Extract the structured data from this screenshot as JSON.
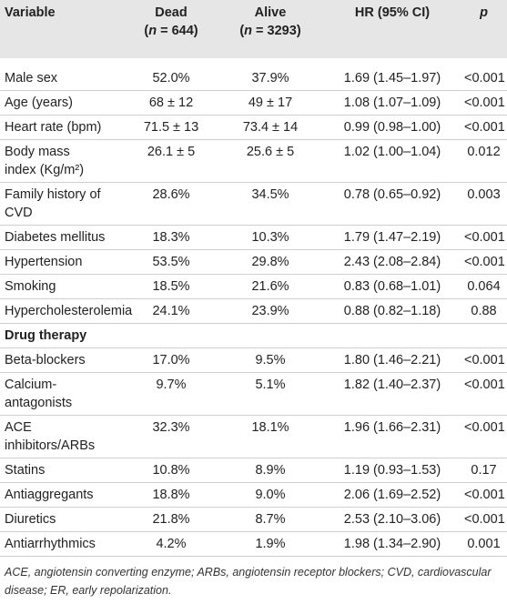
{
  "table": {
    "header": [
      {
        "lines": [
          "Variable"
        ]
      },
      {
        "lines": [
          "Dead",
          [
            "(",
            "n",
            " = 644)"
          ]
        ]
      },
      {
        "lines": [
          "Alive",
          [
            "(",
            "n",
            " = 3293)"
          ]
        ]
      },
      {
        "lines": [
          "HR (95% CI)"
        ]
      },
      {
        "lines": [
          [
            "",
            "p",
            ""
          ]
        ]
      }
    ],
    "rows": [
      [
        [
          "Male sex"
        ],
        "52.0%",
        "37.9%",
        "1.69 (1.45–1.97)",
        "<0.001"
      ],
      [
        [
          "Age (years)"
        ],
        "68 ± 12",
        "49 ± 17",
        "1.08 (1.07–1.09)",
        "<0.001"
      ],
      [
        [
          "Heart rate (bpm)"
        ],
        "71.5 ± 13",
        "73.4 ± 14",
        "0.99 (0.98–1.00)",
        "<0.001"
      ],
      [
        [
          "Body mass",
          "index (Kg/m²)"
        ],
        "26.1 ± 5",
        "25.6 ± 5",
        "1.02 (1.00–1.04)",
        "0.012"
      ],
      [
        [
          "Family history of",
          "CVD"
        ],
        "28.6%",
        "34.5%",
        "0.78 (0.65–0.92)",
        "0.003"
      ],
      [
        [
          "Diabetes mellitus"
        ],
        "18.3%",
        "10.3%",
        "1.79 (1.47–2.19)",
        "<0.001"
      ],
      [
        [
          "Hypertension"
        ],
        "53.5%",
        "29.8%",
        "2.43 (2.08–2.84)",
        "<0.001"
      ],
      [
        [
          "Smoking"
        ],
        "18.5%",
        "21.6%",
        "0.83 (0.68–1.01)",
        "0.064"
      ],
      [
        [
          "Hypercholesterolemia"
        ],
        "24.1%",
        "23.9%",
        "0.88 (0.82–1.18)",
        "0.88"
      ],
      {
        "section": "Drug therapy"
      },
      [
        [
          "Beta-blockers"
        ],
        "17.0%",
        "9.5%",
        "1.80 (1.46–2.21)",
        "<0.001"
      ],
      [
        [
          "Calcium-",
          "antagonists"
        ],
        "9.7%",
        "5.1%",
        "1.82 (1.40–2.37)",
        "<0.001"
      ],
      [
        [
          "ACE",
          "inhibitors/ARBs"
        ],
        "32.3%",
        "18.1%",
        "1.96 (1.66–2.31)",
        "<0.001"
      ],
      [
        [
          "Statins"
        ],
        "10.8%",
        "8.9%",
        "1.19 (0.93–1.53)",
        "0.17"
      ],
      [
        [
          "Antiaggregants"
        ],
        "18.8%",
        "9.0%",
        "2.06 (1.69–2.52)",
        "<0.001"
      ],
      [
        [
          "Diuretics"
        ],
        "21.8%",
        "8.7%",
        "2.53 (2.10–3.06)",
        "<0.001"
      ],
      [
        [
          "Antiarrhythmics"
        ],
        "4.2%",
        "1.9%",
        "1.98 (1.34–2.90)",
        "0.001"
      ]
    ],
    "footnote": "ACE, angiotensin converting enzyme; ARBs, angiotensin receptor blockers; CVD, cardiovascular disease; ER, early repolarization."
  }
}
